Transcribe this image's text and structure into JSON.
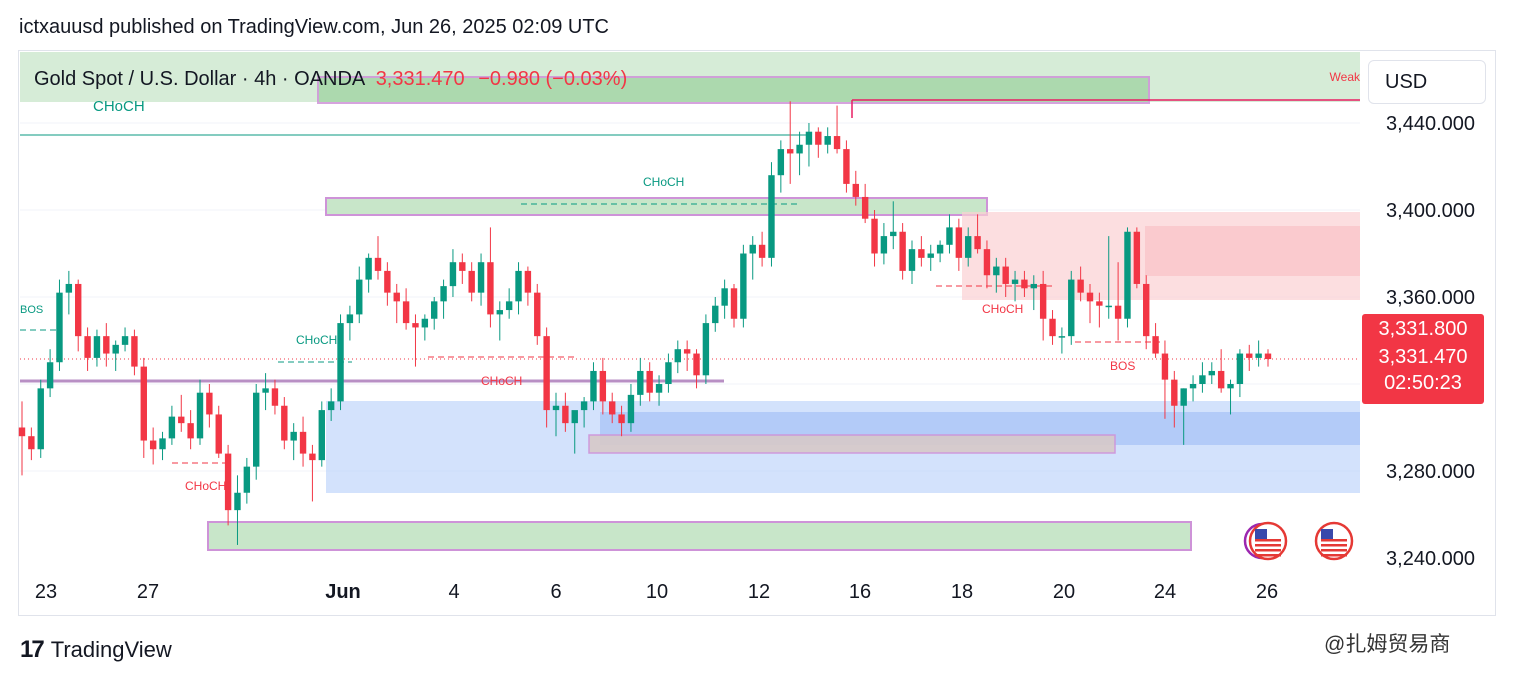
{
  "header": {
    "publisher_line": "ictxauusd published on TradingView.com, Jun 26, 2025 02:09 UTC"
  },
  "legend": {
    "symbol": "Gold Spot / U.S. Dollar · 4h · OANDA",
    "price": "3,331.470",
    "change": "−0.980 (−0.03%)"
  },
  "currency_button": "USD",
  "price_scale": {
    "labels": [
      "3,440.000",
      "3,400.000",
      "3,360.000",
      "3,280.000",
      "3,240.000"
    ],
    "tag_high": "3,331.800",
    "tag_last": "3,331.470",
    "countdown": "02:50:23"
  },
  "time_axis": {
    "labels": [
      "23",
      "27",
      "Jun",
      "4",
      "6",
      "10",
      "12",
      "16",
      "18",
      "20",
      "24",
      "26"
    ]
  },
  "annotations": {
    "choch_top_left": "CHoCH",
    "weak": "Weak",
    "bos_left": "BOS",
    "choch_mid_top": "CHoCH",
    "choch_left_mid": "CHoCH",
    "choch_mid_red": "CHoCH",
    "choch_bottom_left": "CHoCH",
    "choch_right": "CHoCH",
    "bos_right": "BOS"
  },
  "footer": {
    "brand": "TradingView",
    "watermark": "@扎姆贸易商"
  },
  "colors": {
    "bull": "#089981",
    "bear": "#f23645",
    "demand_zone": "#c8e6c9",
    "supply_zone": "#fbd0d3",
    "blue_zone": "#bbd2fb",
    "zone_border": "#ce93d8"
  },
  "chart_data": {
    "type": "candlestick",
    "title": "Gold Spot / U.S. Dollar · 4h · OANDA",
    "ylim": [
      3240,
      3460
    ],
    "last_price": 3331.47,
    "x_labels": [
      "23",
      "27",
      "Jun",
      "4",
      "6",
      "10",
      "12",
      "16",
      "18",
      "20",
      "24",
      "26"
    ],
    "candles": [
      {
        "o": 3300,
        "h": 3312,
        "l": 3278,
        "c": 3296
      },
      {
        "o": 3296,
        "h": 3300,
        "l": 3285,
        "c": 3290
      },
      {
        "o": 3290,
        "h": 3322,
        "l": 3286,
        "c": 3318
      },
      {
        "o": 3318,
        "h": 3336,
        "l": 3314,
        "c": 3330
      },
      {
        "o": 3330,
        "h": 3368,
        "l": 3326,
        "c": 3362
      },
      {
        "o": 3362,
        "h": 3372,
        "l": 3352,
        "c": 3366
      },
      {
        "o": 3366,
        "h": 3368,
        "l": 3335,
        "c": 3342
      },
      {
        "o": 3342,
        "h": 3346,
        "l": 3326,
        "c": 3332
      },
      {
        "o": 3332,
        "h": 3345,
        "l": 3328,
        "c": 3342
      },
      {
        "o": 3342,
        "h": 3348,
        "l": 3328,
        "c": 3334
      },
      {
        "o": 3334,
        "h": 3340,
        "l": 3326,
        "c": 3338
      },
      {
        "o": 3338,
        "h": 3346,
        "l": 3335,
        "c": 3342
      },
      {
        "o": 3342,
        "h": 3345,
        "l": 3324,
        "c": 3328
      },
      {
        "o": 3328,
        "h": 3332,
        "l": 3286,
        "c": 3294
      },
      {
        "o": 3294,
        "h": 3300,
        "l": 3283,
        "c": 3290
      },
      {
        "o": 3290,
        "h": 3298,
        "l": 3285,
        "c": 3295
      },
      {
        "o": 3295,
        "h": 3310,
        "l": 3292,
        "c": 3305
      },
      {
        "o": 3305,
        "h": 3315,
        "l": 3298,
        "c": 3302
      },
      {
        "o": 3302,
        "h": 3308,
        "l": 3290,
        "c": 3295
      },
      {
        "o": 3295,
        "h": 3322,
        "l": 3292,
        "c": 3316
      },
      {
        "o": 3316,
        "h": 3320,
        "l": 3300,
        "c": 3306
      },
      {
        "o": 3306,
        "h": 3310,
        "l": 3286,
        "c": 3288
      },
      {
        "o": 3288,
        "h": 3292,
        "l": 3255,
        "c": 3262
      },
      {
        "o": 3262,
        "h": 3278,
        "l": 3246,
        "c": 3270
      },
      {
        "o": 3270,
        "h": 3286,
        "l": 3265,
        "c": 3282
      },
      {
        "o": 3282,
        "h": 3320,
        "l": 3276,
        "c": 3316
      },
      {
        "o": 3316,
        "h": 3325,
        "l": 3308,
        "c": 3318
      },
      {
        "o": 3318,
        "h": 3322,
        "l": 3306,
        "c": 3310
      },
      {
        "o": 3310,
        "h": 3314,
        "l": 3290,
        "c": 3294
      },
      {
        "o": 3294,
        "h": 3302,
        "l": 3285,
        "c": 3298
      },
      {
        "o": 3298,
        "h": 3305,
        "l": 3282,
        "c": 3288
      },
      {
        "o": 3288,
        "h": 3292,
        "l": 3266,
        "c": 3285
      },
      {
        "o": 3285,
        "h": 3312,
        "l": 3282,
        "c": 3308
      },
      {
        "o": 3308,
        "h": 3318,
        "l": 3303,
        "c": 3312
      },
      {
        "o": 3312,
        "h": 3352,
        "l": 3308,
        "c": 3348
      },
      {
        "o": 3348,
        "h": 3356,
        "l": 3340,
        "c": 3352
      },
      {
        "o": 3352,
        "h": 3374,
        "l": 3348,
        "c": 3368
      },
      {
        "o": 3368,
        "h": 3380,
        "l": 3362,
        "c": 3378
      },
      {
        "o": 3378,
        "h": 3388,
        "l": 3368,
        "c": 3372
      },
      {
        "o": 3372,
        "h": 3376,
        "l": 3356,
        "c": 3362
      },
      {
        "o": 3362,
        "h": 3366,
        "l": 3348,
        "c": 3358
      },
      {
        "o": 3358,
        "h": 3364,
        "l": 3345,
        "c": 3348
      },
      {
        "o": 3348,
        "h": 3352,
        "l": 3328,
        "c": 3346
      },
      {
        "o": 3346,
        "h": 3352,
        "l": 3340,
        "c": 3350
      },
      {
        "o": 3350,
        "h": 3360,
        "l": 3345,
        "c": 3358
      },
      {
        "o": 3358,
        "h": 3368,
        "l": 3350,
        "c": 3365
      },
      {
        "o": 3365,
        "h": 3382,
        "l": 3360,
        "c": 3376
      },
      {
        "o": 3376,
        "h": 3380,
        "l": 3366,
        "c": 3372
      },
      {
        "o": 3372,
        "h": 3376,
        "l": 3358,
        "c": 3362
      },
      {
        "o": 3362,
        "h": 3380,
        "l": 3356,
        "c": 3376
      },
      {
        "o": 3376,
        "h": 3392,
        "l": 3346,
        "c": 3352
      },
      {
        "o": 3352,
        "h": 3358,
        "l": 3340,
        "c": 3354
      },
      {
        "o": 3354,
        "h": 3364,
        "l": 3350,
        "c": 3358
      },
      {
        "o": 3358,
        "h": 3376,
        "l": 3352,
        "c": 3372
      },
      {
        "o": 3372,
        "h": 3374,
        "l": 3356,
        "c": 3362
      },
      {
        "o": 3362,
        "h": 3366,
        "l": 3338,
        "c": 3342
      },
      {
        "o": 3342,
        "h": 3346,
        "l": 3300,
        "c": 3308
      },
      {
        "o": 3308,
        "h": 3316,
        "l": 3296,
        "c": 3310
      },
      {
        "o": 3310,
        "h": 3316,
        "l": 3298,
        "c": 3302
      },
      {
        "o": 3302,
        "h": 3306,
        "l": 3288,
        "c": 3308
      },
      {
        "o": 3308,
        "h": 3314,
        "l": 3300,
        "c": 3312
      },
      {
        "o": 3312,
        "h": 3330,
        "l": 3308,
        "c": 3326
      },
      {
        "o": 3326,
        "h": 3332,
        "l": 3306,
        "c": 3312
      },
      {
        "o": 3312,
        "h": 3316,
        "l": 3302,
        "c": 3306
      },
      {
        "o": 3306,
        "h": 3310,
        "l": 3296,
        "c": 3302
      },
      {
        "o": 3302,
        "h": 3320,
        "l": 3298,
        "c": 3315
      },
      {
        "o": 3315,
        "h": 3332,
        "l": 3310,
        "c": 3326
      },
      {
        "o": 3326,
        "h": 3330,
        "l": 3312,
        "c": 3316
      },
      {
        "o": 3316,
        "h": 3324,
        "l": 3310,
        "c": 3320
      },
      {
        "o": 3320,
        "h": 3334,
        "l": 3316,
        "c": 3330
      },
      {
        "o": 3330,
        "h": 3340,
        "l": 3325,
        "c": 3336
      },
      {
        "o": 3336,
        "h": 3340,
        "l": 3326,
        "c": 3334
      },
      {
        "o": 3334,
        "h": 3336,
        "l": 3318,
        "c": 3324
      },
      {
        "o": 3324,
        "h": 3352,
        "l": 3320,
        "c": 3348
      },
      {
        "o": 3348,
        "h": 3360,
        "l": 3344,
        "c": 3356
      },
      {
        "o": 3356,
        "h": 3368,
        "l": 3350,
        "c": 3364
      },
      {
        "o": 3364,
        "h": 3366,
        "l": 3346,
        "c": 3350
      },
      {
        "o": 3350,
        "h": 3384,
        "l": 3346,
        "c": 3380
      },
      {
        "o": 3380,
        "h": 3388,
        "l": 3368,
        "c": 3384
      },
      {
        "o": 3384,
        "h": 3390,
        "l": 3374,
        "c": 3378
      },
      {
        "o": 3378,
        "h": 3422,
        "l": 3374,
        "c": 3416
      },
      {
        "o": 3416,
        "h": 3432,
        "l": 3408,
        "c": 3428
      },
      {
        "o": 3428,
        "h": 3450,
        "l": 3412,
        "c": 3426
      },
      {
        "o": 3426,
        "h": 3436,
        "l": 3416,
        "c": 3430
      },
      {
        "o": 3430,
        "h": 3440,
        "l": 3420,
        "c": 3436
      },
      {
        "o": 3436,
        "h": 3438,
        "l": 3424,
        "c": 3430
      },
      {
        "o": 3430,
        "h": 3438,
        "l": 3426,
        "c": 3434
      },
      {
        "o": 3434,
        "h": 3448,
        "l": 3426,
        "c": 3428
      },
      {
        "o": 3428,
        "h": 3432,
        "l": 3408,
        "c": 3412
      },
      {
        "o": 3412,
        "h": 3418,
        "l": 3402,
        "c": 3406
      },
      {
        "o": 3406,
        "h": 3412,
        "l": 3394,
        "c": 3396
      },
      {
        "o": 3396,
        "h": 3400,
        "l": 3374,
        "c": 3380
      },
      {
        "o": 3380,
        "h": 3394,
        "l": 3375,
        "c": 3388
      },
      {
        "o": 3388,
        "h": 3404,
        "l": 3382,
        "c": 3390
      },
      {
        "o": 3390,
        "h": 3394,
        "l": 3368,
        "c": 3372
      },
      {
        "o": 3372,
        "h": 3386,
        "l": 3366,
        "c": 3382
      },
      {
        "o": 3382,
        "h": 3388,
        "l": 3374,
        "c": 3378
      },
      {
        "o": 3378,
        "h": 3384,
        "l": 3372,
        "c": 3380
      },
      {
        "o": 3380,
        "h": 3386,
        "l": 3376,
        "c": 3384
      },
      {
        "o": 3384,
        "h": 3398,
        "l": 3380,
        "c": 3392
      },
      {
        "o": 3392,
        "h": 3396,
        "l": 3372,
        "c": 3378
      },
      {
        "o": 3378,
        "h": 3392,
        "l": 3374,
        "c": 3388
      },
      {
        "o": 3388,
        "h": 3398,
        "l": 3380,
        "c": 3382
      },
      {
        "o": 3382,
        "h": 3386,
        "l": 3364,
        "c": 3370
      },
      {
        "o": 3370,
        "h": 3378,
        "l": 3362,
        "c": 3374
      },
      {
        "o": 3374,
        "h": 3378,
        "l": 3360,
        "c": 3366
      },
      {
        "o": 3366,
        "h": 3372,
        "l": 3358,
        "c": 3368
      },
      {
        "o": 3368,
        "h": 3372,
        "l": 3360,
        "c": 3364
      },
      {
        "o": 3364,
        "h": 3370,
        "l": 3354,
        "c": 3366
      },
      {
        "o": 3366,
        "h": 3372,
        "l": 3340,
        "c": 3350
      },
      {
        "o": 3350,
        "h": 3354,
        "l": 3338,
        "c": 3342
      },
      {
        "o": 3342,
        "h": 3346,
        "l": 3334,
        "c": 3342
      },
      {
        "o": 3342,
        "h": 3372,
        "l": 3338,
        "c": 3368
      },
      {
        "o": 3368,
        "h": 3374,
        "l": 3358,
        "c": 3362
      },
      {
        "o": 3362,
        "h": 3366,
        "l": 3348,
        "c": 3358
      },
      {
        "o": 3358,
        "h": 3362,
        "l": 3346,
        "c": 3356
      },
      {
        "o": 3356,
        "h": 3388,
        "l": 3350,
        "c": 3356
      },
      {
        "o": 3356,
        "h": 3376,
        "l": 3340,
        "c": 3350
      },
      {
        "o": 3350,
        "h": 3392,
        "l": 3346,
        "c": 3390
      },
      {
        "o": 3390,
        "h": 3392,
        "l": 3364,
        "c": 3366
      },
      {
        "o": 3366,
        "h": 3370,
        "l": 3336,
        "c": 3342
      },
      {
        "o": 3342,
        "h": 3348,
        "l": 3332,
        "c": 3334
      },
      {
        "o": 3334,
        "h": 3340,
        "l": 3304,
        "c": 3322
      },
      {
        "o": 3322,
        "h": 3326,
        "l": 3300,
        "c": 3310
      },
      {
        "o": 3310,
        "h": 3318,
        "l": 3292,
        "c": 3318
      },
      {
        "o": 3318,
        "h": 3324,
        "l": 3312,
        "c": 3320
      },
      {
        "o": 3320,
        "h": 3330,
        "l": 3316,
        "c": 3324
      },
      {
        "o": 3324,
        "h": 3330,
        "l": 3320,
        "c": 3326
      },
      {
        "o": 3326,
        "h": 3336,
        "l": 3316,
        "c": 3318
      },
      {
        "o": 3318,
        "h": 3322,
        "l": 3306,
        "c": 3320
      },
      {
        "o": 3320,
        "h": 3336,
        "l": 3314,
        "c": 3334
      },
      {
        "o": 3334,
        "h": 3338,
        "l": 3326,
        "c": 3332
      },
      {
        "o": 3332,
        "h": 3340,
        "l": 3328,
        "c": 3334
      },
      {
        "o": 3334,
        "h": 3336,
        "l": 3328,
        "c": 3331.47
      }
    ]
  }
}
